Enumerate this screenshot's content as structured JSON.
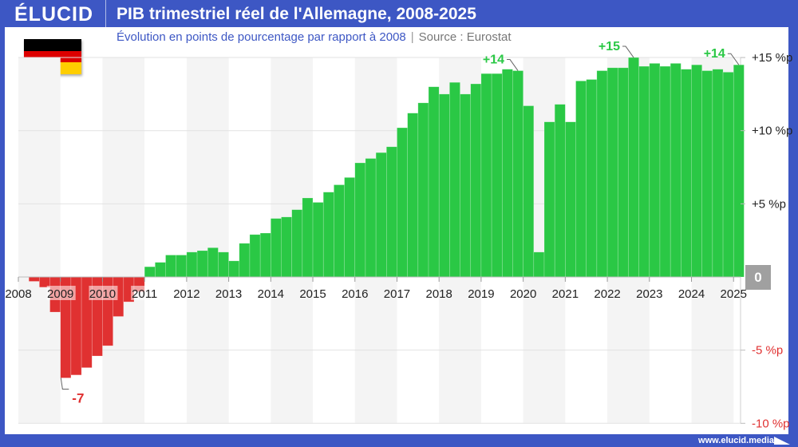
{
  "header": {
    "logo": "ÉLUCID",
    "title": "PIB trimestriel réel de l'Allemagne, 2008-2025"
  },
  "subtitle": {
    "text": "Évolution en points de pourcentage par rapport à 2008",
    "separator": "|",
    "source": "Source : Eurostat"
  },
  "flag": {
    "name": "germany-flag",
    "colors": [
      "#000000",
      "#dd0000",
      "#ffce00"
    ]
  },
  "footer": {
    "url": "www.elucid.media"
  },
  "colors": {
    "positive": "#2ac845",
    "negative": "#e03131",
    "brand": "#3d57c4",
    "zero_badge": "#a0a0a0"
  },
  "chart_data": {
    "type": "bar",
    "title": "PIB trimestriel réel de l'Allemagne, 2008-2025",
    "subtitle": "Évolution en points de pourcentage par rapport à 2008 | Source : Eurostat",
    "xlabel": "",
    "ylabel": "",
    "ylim": [
      -10,
      15
    ],
    "y_ticks": [
      {
        "value": 15,
        "label": "+15 %p",
        "color": "#222222"
      },
      {
        "value": 10,
        "label": "+10 %p",
        "color": "#222222"
      },
      {
        "value": 5,
        "label": "+5 %p",
        "color": "#222222"
      },
      {
        "value": 0,
        "label": "0",
        "color": "#ffffff"
      },
      {
        "value": -5,
        "label": "-5 %p",
        "color": "#e03131"
      },
      {
        "value": -10,
        "label": "-10 %p",
        "color": "#e03131"
      }
    ],
    "x_ticks": [
      "2008",
      "2009",
      "2010",
      "2011",
      "2012",
      "2013",
      "2014",
      "2015",
      "2016",
      "2017",
      "2018",
      "2019",
      "2020",
      "2021",
      "2022",
      "2023",
      "2024",
      "2025"
    ],
    "grid": true,
    "legend": null,
    "categories": [
      "2008Q1",
      "2008Q2",
      "2008Q3",
      "2008Q4",
      "2009Q1",
      "2009Q2",
      "2009Q3",
      "2009Q4",
      "2010Q1",
      "2010Q2",
      "2010Q3",
      "2010Q4",
      "2011Q1",
      "2011Q2",
      "2011Q3",
      "2011Q4",
      "2012Q1",
      "2012Q2",
      "2012Q3",
      "2012Q4",
      "2013Q1",
      "2013Q2",
      "2013Q3",
      "2013Q4",
      "2014Q1",
      "2014Q2",
      "2014Q3",
      "2014Q4",
      "2015Q1",
      "2015Q2",
      "2015Q3",
      "2015Q4",
      "2016Q1",
      "2016Q2",
      "2016Q3",
      "2016Q4",
      "2017Q1",
      "2017Q2",
      "2017Q3",
      "2017Q4",
      "2018Q1",
      "2018Q2",
      "2018Q3",
      "2018Q4",
      "2019Q1",
      "2019Q2",
      "2019Q3",
      "2019Q4",
      "2020Q1",
      "2020Q2",
      "2020Q3",
      "2020Q4",
      "2021Q1",
      "2021Q2",
      "2021Q3",
      "2021Q4",
      "2022Q1",
      "2022Q2",
      "2022Q3",
      "2022Q4",
      "2023Q1",
      "2023Q2",
      "2023Q3",
      "2023Q4",
      "2024Q1",
      "2024Q2",
      "2024Q3",
      "2024Q4",
      "2025Q1"
    ],
    "values": [
      0,
      -0.3,
      -0.7,
      -2.4,
      -6.9,
      -6.7,
      -6.2,
      -5.4,
      -4.7,
      -2.7,
      -1.7,
      -1.0,
      0.7,
      1.0,
      1.5,
      1.5,
      1.7,
      1.8,
      2.0,
      1.7,
      1.1,
      2.3,
      2.9,
      3.0,
      4.0,
      4.1,
      4.6,
      5.4,
      5.1,
      5.8,
      6.3,
      6.8,
      7.8,
      8.1,
      8.5,
      8.9,
      10.2,
      11.2,
      11.9,
      13.0,
      12.5,
      13.3,
      12.5,
      13.2,
      13.9,
      13.9,
      14.2,
      14.1,
      11.7,
      1.7,
      10.6,
      11.8,
      10.6,
      13.4,
      13.5,
      14.1,
      14.3,
      14.3,
      15.0,
      14.4,
      14.6,
      14.4,
      14.6,
      14.2,
      14.5,
      14.1,
      14.2,
      14.0,
      14.5
    ],
    "annotations": [
      {
        "label": "-7",
        "category": "2009Q1",
        "color": "#e03131"
      },
      {
        "label": "+14",
        "category": "2019Q4",
        "color": "#2ac845"
      },
      {
        "label": "+15",
        "category": "2022Q3",
        "color": "#2ac845"
      },
      {
        "label": "+14",
        "category": "2025Q1",
        "color": "#2ac845"
      }
    ]
  }
}
